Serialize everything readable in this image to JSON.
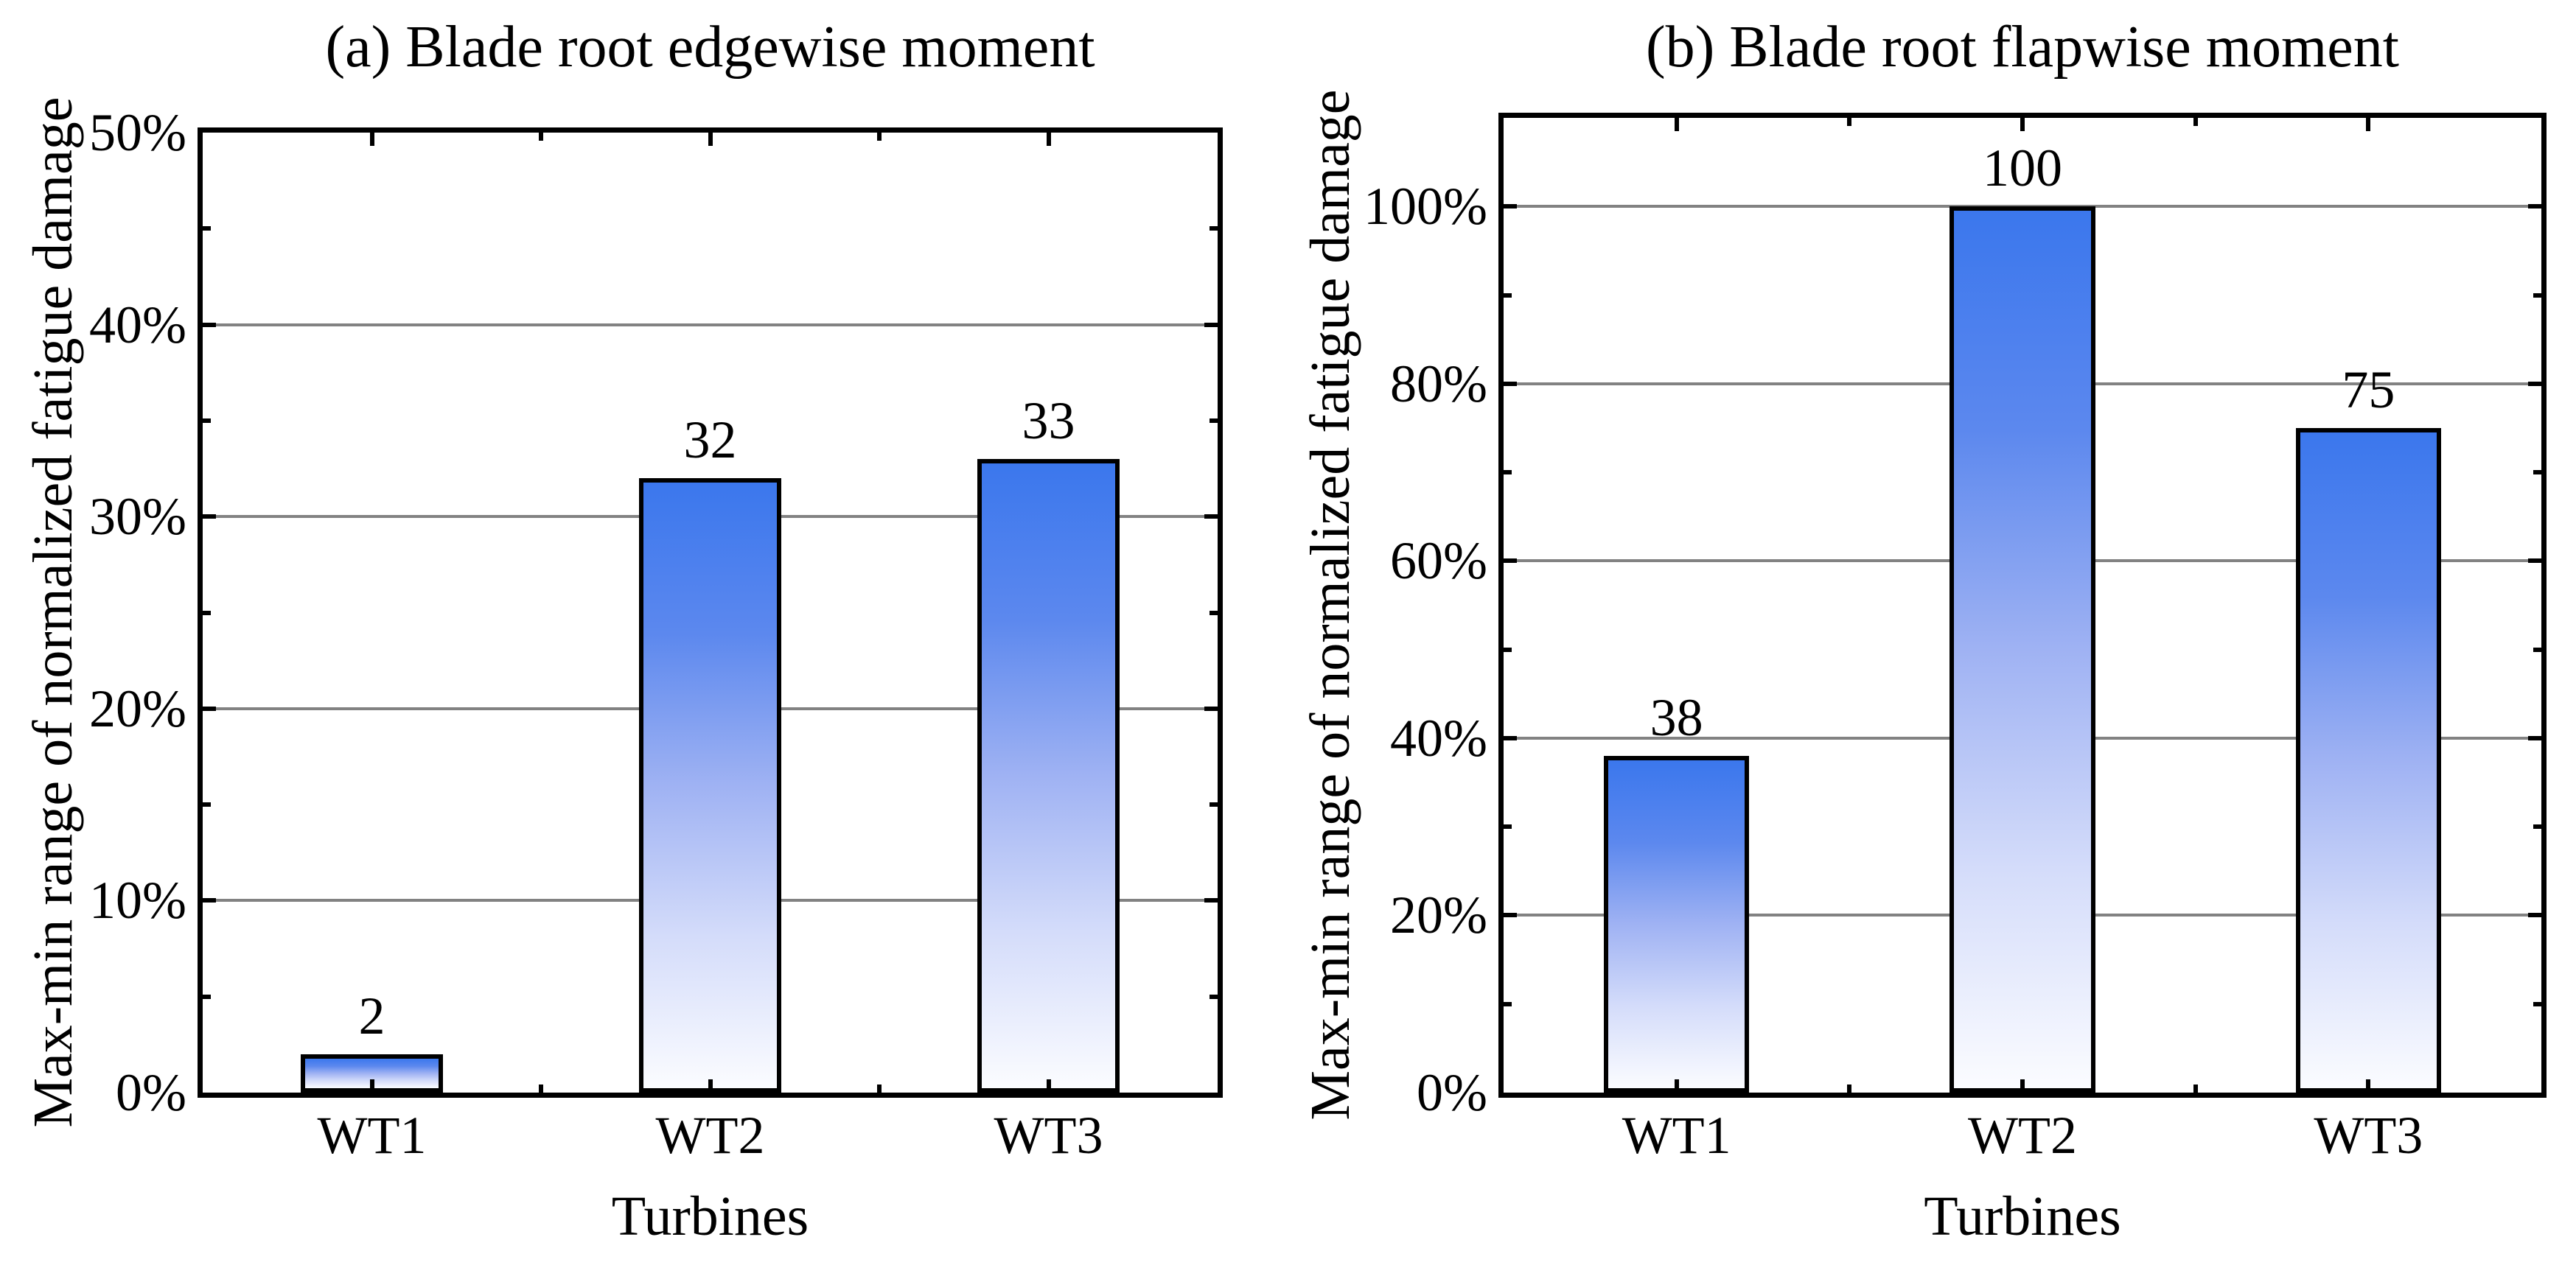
{
  "figure": {
    "background": "#ffffff"
  },
  "colors": {
    "axis": "#000000",
    "text": "#000000",
    "gridline": "#828282",
    "bar_border": "#000000",
    "bar_gradient": [
      "#3B77ED",
      "#5C88EE",
      "#9FB2F3",
      "#D4DCFA",
      "#FBFCFF"
    ]
  },
  "chart_data": [
    {
      "type": "bar",
      "title": "(a) Blade root edgewise moment",
      "xlabel": "Turbines",
      "ylabel": "Max-min range of normalized fatigue damage",
      "categories": [
        "WT1",
        "WT2",
        "WT3"
      ],
      "values": [
        2,
        32,
        33
      ],
      "bar_labels": [
        "2",
        "32",
        "33"
      ],
      "ylim": [
        0,
        50
      ],
      "ytick_major": [
        {
          "value": 0,
          "label": "0%"
        },
        {
          "value": 10,
          "label": "10%"
        },
        {
          "value": 20,
          "label": "20%"
        },
        {
          "value": 30,
          "label": "30%"
        },
        {
          "value": 40,
          "label": "40%"
        },
        {
          "value": 50,
          "label": "50%"
        }
      ],
      "ytick_minor": [
        5,
        15,
        25,
        35,
        45
      ],
      "grid_values": [
        10,
        20,
        30,
        40
      ],
      "grid_on": true,
      "legend": "none"
    },
    {
      "type": "bar",
      "title": "(b) Blade root flapwise moment",
      "xlabel": "Turbines",
      "ylabel": "Max-min range of normalized fatigue damage",
      "categories": [
        "WT1",
        "WT2",
        "WT3"
      ],
      "values": [
        38,
        100,
        75
      ],
      "bar_labels": [
        "38",
        "100",
        "75"
      ],
      "ylim": [
        0,
        110
      ],
      "ytick_major": [
        {
          "value": 0,
          "label": "0%"
        },
        {
          "value": 20,
          "label": "20%"
        },
        {
          "value": 40,
          "label": "40%"
        },
        {
          "value": 60,
          "label": "60%"
        },
        {
          "value": 80,
          "label": "80%"
        },
        {
          "value": 100,
          "label": "100%"
        }
      ],
      "ytick_minor": [
        10,
        30,
        50,
        70,
        90
      ],
      "grid_values": [
        20,
        40,
        60,
        80,
        100
      ],
      "grid_on": true,
      "legend": "none"
    }
  ]
}
